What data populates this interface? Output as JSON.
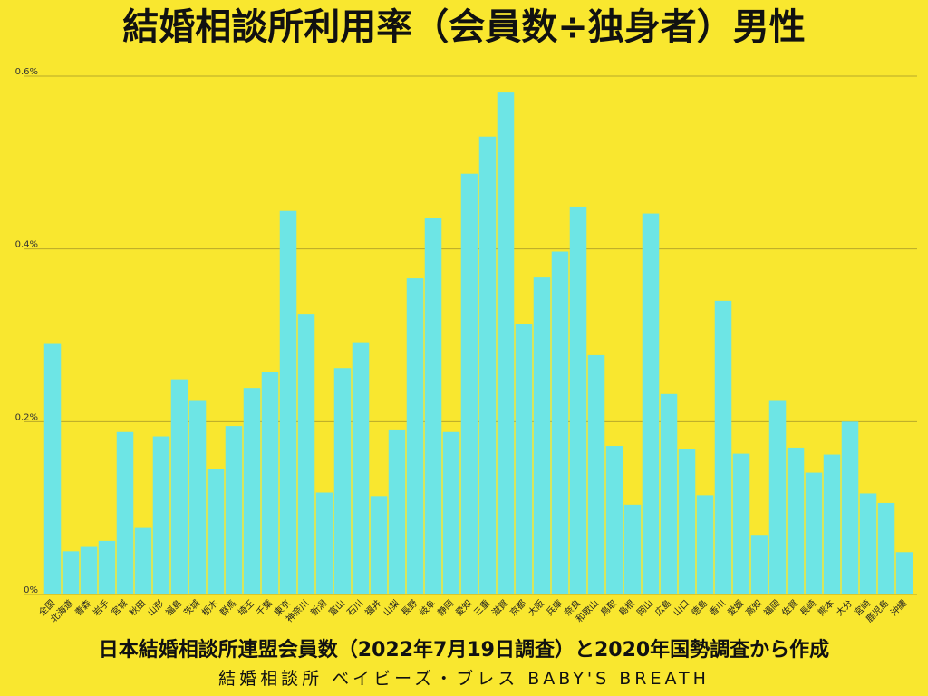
{
  "chart_data": {
    "type": "bar",
    "title": "結婚相談所利用率（会員数÷独身者）男性",
    "categories": [
      "全国",
      "北海道",
      "青森",
      "岩手",
      "宮城",
      "秋田",
      "山形",
      "福島",
      "茨城",
      "栃木",
      "群馬",
      "埼玉",
      "千葉",
      "東京",
      "神奈川",
      "新潟",
      "富山",
      "石川",
      "福井",
      "山梨",
      "長野",
      "岐阜",
      "静岡",
      "愛知",
      "三重",
      "滋賀",
      "京都",
      "大阪",
      "兵庫",
      "奈良",
      "和歌山",
      "鳥取",
      "島根",
      "岡山",
      "広島",
      "山口",
      "徳島",
      "香川",
      "愛媛",
      "高知",
      "福岡",
      "佐賀",
      "長崎",
      "熊本",
      "大分",
      "宮崎",
      "鹿児島",
      "沖縄"
    ],
    "values": [
      0.29,
      0.05,
      0.055,
      0.062,
      0.188,
      0.077,
      0.183,
      0.249,
      0.225,
      0.145,
      0.195,
      0.239,
      0.257,
      0.444,
      0.324,
      0.118,
      0.262,
      0.292,
      0.114,
      0.191,
      0.366,
      0.436,
      0.188,
      0.487,
      0.53,
      0.581,
      0.313,
      0.367,
      0.397,
      0.449,
      0.277,
      0.172,
      0.104,
      0.441,
      0.232,
      0.168,
      0.115,
      0.34,
      0.163,
      0.069,
      0.225,
      0.17,
      0.141,
      0.162,
      0.2,
      0.117,
      0.106,
      0.049
    ],
    "yticks": [
      "0%",
      "0.2%",
      "0.4%",
      "0.6%"
    ],
    "ylim": [
      0,
      0.6
    ],
    "grid": true,
    "bar_color": "#6de5e5",
    "background_color": "#f9e72f"
  },
  "footer": {
    "source": "日本結婚相談所連盟会員数（2022年7月19日調査）と2020年国勢調査から作成",
    "brand": "結婚相談所 ベイビーズ・ブレス BABY'S BREATH"
  }
}
